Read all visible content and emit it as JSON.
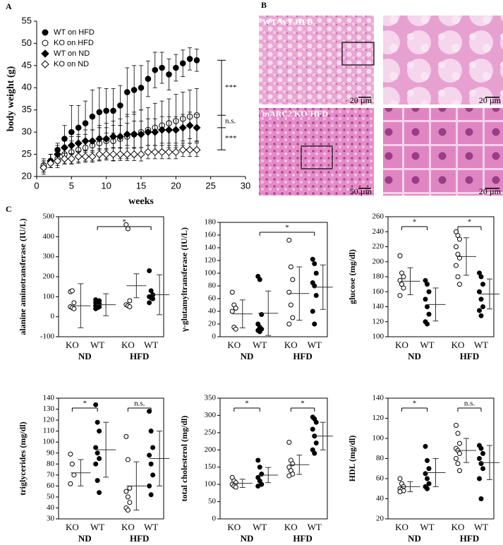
{
  "panel_labels": [
    "A",
    "B",
    "C"
  ],
  "micrographs": {
    "captions": [
      "WT/WT-HFD",
      "mARC2 KO-HFD"
    ],
    "scale_bars": [
      "20 µm",
      "20 µm",
      "50 µm",
      "20 µm"
    ]
  },
  "chart_data": [
    {
      "type": "line",
      "x_label": "weeks",
      "y_label": "body weight (g)",
      "x": [
        1,
        2,
        3,
        4,
        5,
        6,
        7,
        8,
        9,
        10,
        11,
        12,
        13,
        14,
        15,
        16,
        17,
        18,
        19,
        20,
        21,
        22,
        23
      ],
      "xlim": [
        0,
        30
      ],
      "xticks": [
        0,
        5,
        10,
        15,
        20,
        25,
        30
      ],
      "ylim": [
        20,
        55
      ],
      "yticks": [
        20,
        25,
        30,
        35,
        40,
        45,
        50,
        55
      ],
      "legend": "upper left",
      "series": [
        {
          "name": "WT on HFD",
          "marker": "circle",
          "fill": "filled",
          "values": [
            22.5,
            23.5,
            26,
            28.5,
            30,
            31,
            32,
            33.5,
            34.5,
            34.8,
            34.8,
            36,
            39,
            39.5,
            40,
            42,
            44,
            44.5,
            43,
            44.5,
            45.5,
            46.5,
            46.2
          ],
          "errors": [
            1,
            1.5,
            1.5,
            3,
            6,
            5,
            5,
            6,
            5.5,
            5,
            5,
            4.5,
            5.5,
            5.5,
            5,
            4,
            4,
            3.5,
            3.5,
            3,
            3,
            2.5,
            2.5
          ]
        },
        {
          "name": "KO on HFD",
          "marker": "circle",
          "fill": "open",
          "values": [
            22.5,
            23.5,
            24,
            25,
            25.5,
            26,
            26.5,
            27,
            27.5,
            28,
            28,
            28.5,
            29,
            29.5,
            30,
            30.5,
            31,
            31.5,
            32,
            32.5,
            33,
            33.5,
            33.8
          ],
          "errors": [
            1.5,
            1.5,
            2,
            2,
            2.5,
            3,
            3,
            3.5,
            4,
            4,
            4.5,
            4.5,
            5,
            5,
            5,
            5,
            5.5,
            5.5,
            5.5,
            6,
            6,
            6,
            6
          ]
        },
        {
          "name": "WT on ND",
          "marker": "diamond",
          "fill": "filled",
          "values": [
            22,
            23.5,
            25,
            26.5,
            27,
            27.5,
            28,
            28,
            28.5,
            28.5,
            29,
            29,
            29.5,
            29.5,
            29.5,
            30,
            30,
            30.5,
            30.5,
            30.5,
            31,
            31.5,
            31
          ],
          "errors": [
            1.5,
            1.5,
            2,
            2,
            2,
            2,
            2.5,
            2.5,
            2.5,
            2.5,
            2.5,
            2.5,
            2.5,
            3,
            3,
            3,
            3,
            3,
            3,
            3,
            3,
            3,
            3
          ]
        },
        {
          "name": "KO on ND",
          "marker": "diamond",
          "fill": "open",
          "values": [
            22,
            23,
            23.5,
            24,
            24,
            24.5,
            24.5,
            24.5,
            25,
            25,
            25,
            25,
            25,
            25,
            25,
            25.5,
            25.5,
            25.5,
            25.5,
            25.5,
            26,
            26,
            26
          ],
          "errors": [
            1,
            1,
            1,
            1.2,
            1.2,
            1.2,
            1.3,
            1.3,
            1.3,
            1.3,
            1.4,
            1.4,
            1.4,
            1.4,
            1.5,
            1.5,
            1.5,
            1.5,
            1.5,
            1.5,
            1.5,
            1.5,
            1.5
          ]
        }
      ],
      "annotations": [
        "***",
        "n.s.",
        "***"
      ]
    },
    {
      "type": "dotplot",
      "y_label": "alanine aminotransferase (IU/L)",
      "ylim": [
        -100,
        500
      ],
      "yticks": [
        -100,
        0,
        100,
        200,
        300,
        400,
        500
      ],
      "categories": [
        "KO",
        "WT",
        "KO",
        "WT"
      ],
      "groups": [
        "ND",
        "HFD"
      ],
      "markers": [
        "open",
        "filled",
        "open",
        "filled"
      ],
      "points": [
        [
          125,
          130,
          70,
          50,
          45,
          40
        ],
        [
          40,
          45,
          50,
          55,
          60,
          65,
          70,
          75,
          80,
          85
        ],
        [
          460,
          440,
          80,
          60,
          55,
          50
        ],
        [
          230,
          130,
          110,
          100,
          95,
          90,
          70
        ]
      ],
      "means": [
        55,
        60,
        155,
        110
      ],
      "sd": [
        110,
        55,
        60,
        100
      ],
      "brackets": [
        {
          "label": "*",
          "between": [
            1,
            3
          ]
        }
      ]
    },
    {
      "type": "dotplot",
      "y_label": "γ-glutamyltransferase (IU/L)",
      "ylim": [
        0,
        180
      ],
      "yticks": [
        0,
        20,
        40,
        60,
        80,
        100,
        120,
        140,
        160,
        180
      ],
      "categories": [
        "KO",
        "WT",
        "KO",
        "WT"
      ],
      "groups": [
        "ND",
        "HFD"
      ],
      "markers": [
        "open",
        "filled",
        "open",
        "filled"
      ],
      "points": [
        [
          70,
          50,
          45,
          40,
          15,
          12
        ],
        [
          95,
          90,
          35,
          20,
          15,
          12,
          10,
          8
        ],
        [
          152,
          110,
          90,
          70,
          50,
          30,
          20
        ],
        [
          122,
          115,
          100,
          85,
          80,
          65,
          40,
          20
        ]
      ],
      "means": [
        36,
        37,
        68,
        78
      ],
      "sd": [
        22,
        35,
        42,
        35
      ],
      "brackets": [
        {
          "label": "*",
          "between": [
            1,
            3
          ]
        }
      ]
    },
    {
      "type": "dotplot",
      "y_label": "glucose (mg/dl)",
      "ylim": [
        100,
        260
      ],
      "yticks": [
        100,
        120,
        140,
        160,
        180,
        200,
        220,
        240,
        260
      ],
      "categories": [
        "KO",
        "WT",
        "KO",
        "WT"
      ],
      "groups": [
        "ND",
        "HFD"
      ],
      "markers": [
        "open",
        "filled",
        "open",
        "filled"
      ],
      "points": [
        [
          208,
          185,
          180,
          175,
          170,
          165,
          155
        ],
        [
          175,
          170,
          160,
          150,
          140,
          130,
          120,
          117
        ],
        [
          240,
          235,
          230,
          220,
          210,
          205,
          195,
          180,
          170
        ],
        [
          185,
          180,
          170,
          160,
          150,
          140,
          135,
          128
        ]
      ],
      "means": [
        174,
        143,
        207,
        157
      ],
      "sd": [
        18,
        22,
        25,
        20
      ],
      "brackets": [
        {
          "label": "*",
          "between": [
            0,
            1
          ]
        },
        {
          "label": "*",
          "between": [
            2,
            3
          ]
        }
      ]
    },
    {
      "type": "dotplot",
      "y_label": "triglycerides (mg/dl)",
      "ylim": [
        30,
        140
      ],
      "yticks": [
        30,
        40,
        50,
        60,
        70,
        80,
        90,
        100,
        110,
        120,
        130,
        140
      ],
      "categories": [
        "KO",
        "WT",
        "KO",
        "WT"
      ],
      "groups": [
        "ND",
        "HFD"
      ],
      "markers": [
        "open",
        "filled",
        "open",
        "filled"
      ],
      "points": [
        [
          89,
          80,
          70,
          62
        ],
        [
          134,
          118,
          110,
          95,
          90,
          85,
          80,
          65,
          54
        ],
        [
          105,
          84,
          58,
          55,
          50,
          45,
          40,
          38
        ],
        [
          128,
          110,
          95,
          88,
          80,
          70,
          60,
          52
        ]
      ],
      "means": [
        72,
        93,
        60,
        85
      ],
      "sd": [
        12,
        25,
        22,
        25
      ],
      "brackets": [
        {
          "label": "*",
          "between": [
            0,
            1
          ]
        },
        {
          "label": "n.s.",
          "between": [
            2,
            3
          ]
        }
      ]
    },
    {
      "type": "dotplot",
      "y_label": "total cholesterol (mg/dl)",
      "ylim": [
        0,
        350
      ],
      "yticks": [
        0,
        50,
        100,
        150,
        200,
        250,
        300,
        350
      ],
      "categories": [
        "KO",
        "WT",
        "KO",
        "WT"
      ],
      "groups": [
        "ND",
        "HFD"
      ],
      "markers": [
        "open",
        "filled",
        "open",
        "filled"
      ],
      "points": [
        [
          120,
          110,
          105,
          100,
          95,
          92
        ],
        [
          170,
          150,
          130,
          120,
          110,
          100,
          95
        ],
        [
          222,
          170,
          160,
          150,
          140,
          130,
          125
        ],
        [
          295,
          290,
          280,
          260,
          240,
          220,
          200,
          190
        ]
      ],
      "means": [
        103,
        127,
        157,
        240
      ],
      "sd": [
        12,
        22,
        28,
        40
      ],
      "brackets": [
        {
          "label": "*",
          "between": [
            0,
            1
          ]
        },
        {
          "label": "*",
          "between": [
            2,
            3
          ]
        }
      ]
    },
    {
      "type": "dotplot",
      "y_label": "HDL (mg/dl)",
      "ylim": [
        20,
        140
      ],
      "yticks": [
        20,
        40,
        60,
        80,
        100,
        120,
        140
      ],
      "categories": [
        "KO",
        "WT",
        "KO",
        "WT"
      ],
      "groups": [
        "ND",
        "HFD"
      ],
      "markers": [
        "open",
        "filled",
        "open",
        "filled"
      ],
      "points": [
        [
          60,
          55,
          52,
          50,
          49,
          48,
          47
        ],
        [
          92,
          78,
          70,
          65,
          60,
          55,
          52,
          50
        ],
        [
          113,
          105,
          95,
          90,
          88,
          85,
          80,
          75,
          68
        ],
        [
          93,
          90,
          85,
          80,
          75,
          70,
          60,
          40
        ]
      ],
      "means": [
        52,
        66,
        88,
        76
      ],
      "sd": [
        5,
        14,
        12,
        17
      ],
      "brackets": [
        {
          "label": "*",
          "between": [
            0,
            1
          ]
        },
        {
          "label": "n.s.",
          "between": [
            2,
            3
          ]
        }
      ]
    }
  ]
}
